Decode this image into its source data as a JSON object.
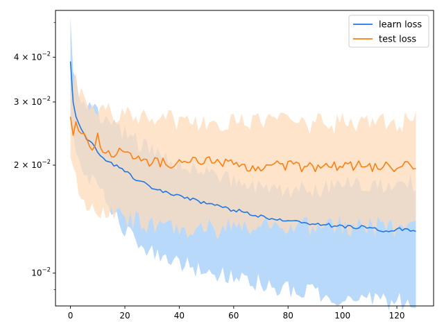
{
  "chart_data": {
    "type": "line",
    "title": "",
    "xlabel": "",
    "ylabel": "",
    "xlim": [
      -5.5,
      133.5
    ],
    "ylim": [
      0.0081,
      0.054
    ],
    "yscale": "log",
    "grid": false,
    "legend_position": "top-right",
    "x_ticks": [
      0,
      20,
      40,
      60,
      80,
      100,
      120
    ],
    "y_major_ticks": [
      {
        "value": 0.01,
        "base": "10",
        "exponent": "−2",
        "mantissa": ""
      },
      {
        "value": 0.02,
        "base": "10",
        "exponent": "−2",
        "mantissa": "2 × "
      },
      {
        "value": 0.03,
        "base": "10",
        "exponent": "−2",
        "mantissa": "3 × "
      },
      {
        "value": 0.04,
        "base": "10",
        "exponent": "−2",
        "mantissa": "4 × "
      }
    ],
    "y_minor_ticks": [
      0.009,
      0.05
    ],
    "x_keypoints": [
      0,
      1,
      2,
      4,
      6,
      8,
      10,
      12,
      15,
      18,
      20,
      25,
      30,
      40,
      50,
      60,
      70,
      80,
      90,
      100,
      110,
      115,
      120,
      127
    ],
    "series": [
      {
        "name": "learn loss",
        "color": "#1f77e4",
        "fill_color": "#b9d9fb",
        "mean": [
          0.0385,
          0.03,
          0.0275,
          0.025,
          0.0238,
          0.0228,
          0.0218,
          0.021,
          0.0203,
          0.0196,
          0.0192,
          0.0181,
          0.0173,
          0.0164,
          0.0156,
          0.015,
          0.0144,
          0.014,
          0.0137,
          0.0135,
          0.0134,
          0.0131,
          0.0133,
          0.0132
        ],
        "upper": [
          0.052,
          0.036,
          0.033,
          0.031,
          0.03,
          0.029,
          0.028,
          0.027,
          0.0262,
          0.0254,
          0.0248,
          0.023,
          0.0217,
          0.02,
          0.019,
          0.0182,
          0.0175,
          0.0172,
          0.0172,
          0.0176,
          0.0177,
          0.0176,
          0.0178,
          0.018
        ],
        "lower": [
          0.0268,
          0.024,
          0.022,
          0.02,
          0.0188,
          0.018,
          0.017,
          0.0164,
          0.0152,
          0.014,
          0.0133,
          0.012,
          0.0113,
          0.0106,
          0.0102,
          0.0097,
          0.0094,
          0.009,
          0.0088,
          0.0084,
          0.0085,
          0.0083,
          0.0084,
          0.0083
        ]
      },
      {
        "name": "test loss",
        "color": "#ff7f0e",
        "fill_color": "#ffdab9",
        "mean": [
          0.0265,
          0.025,
          0.0265,
          0.0248,
          0.0238,
          0.0228,
          0.0238,
          0.0222,
          0.021,
          0.0218,
          0.0214,
          0.021,
          0.0204,
          0.0202,
          0.0206,
          0.02,
          0.0198,
          0.0199,
          0.0197,
          0.02,
          0.0198,
          0.0197,
          0.0198,
          0.02
        ],
        "upper": [
          0.03,
          0.033,
          0.0345,
          0.031,
          0.03,
          0.03,
          0.0295,
          0.0285,
          0.028,
          0.028,
          0.028,
          0.0275,
          0.027,
          0.0265,
          0.0265,
          0.0262,
          0.0262,
          0.0262,
          0.0262,
          0.0262,
          0.0262,
          0.0262,
          0.0262,
          0.027
        ],
        "lower": [
          0.02,
          0.0185,
          0.0178,
          0.0165,
          0.016,
          0.0155,
          0.0152,
          0.0148,
          0.0146,
          0.0145,
          0.0145,
          0.014,
          0.0134,
          0.0133,
          0.0133,
          0.0133,
          0.0134,
          0.0135,
          0.0135,
          0.0135,
          0.0135,
          0.0135,
          0.0135,
          0.0137
        ]
      }
    ]
  }
}
